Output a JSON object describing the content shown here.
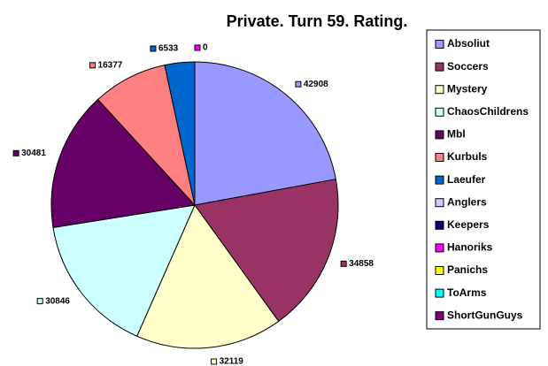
{
  "chart_data": {
    "type": "pie",
    "title": "Private. Turn 59. Rating.",
    "categories": [
      "Absoliut",
      "Soccers",
      "Mystery",
      "ChaosChildrens",
      "Mbl",
      "Kurbuls",
      "Laeufer",
      "Anglers",
      "Keepers",
      "Hanoriks",
      "Panichs",
      "ToArms",
      "ShortGunGuys"
    ],
    "values": [
      42908,
      34858,
      32119,
      30846,
      30481,
      16377,
      6533,
      null,
      null,
      0,
      null,
      null,
      null
    ],
    "colors": [
      "#9999ff",
      "#993366",
      "#ffffcc",
      "#ccffff",
      "#660066",
      "#ff8080",
      "#0066cc",
      "#ccccff",
      "#000080",
      "#ff00ff",
      "#ffff00",
      "#00ffff",
      "#800080"
    ],
    "legend": "right"
  }
}
